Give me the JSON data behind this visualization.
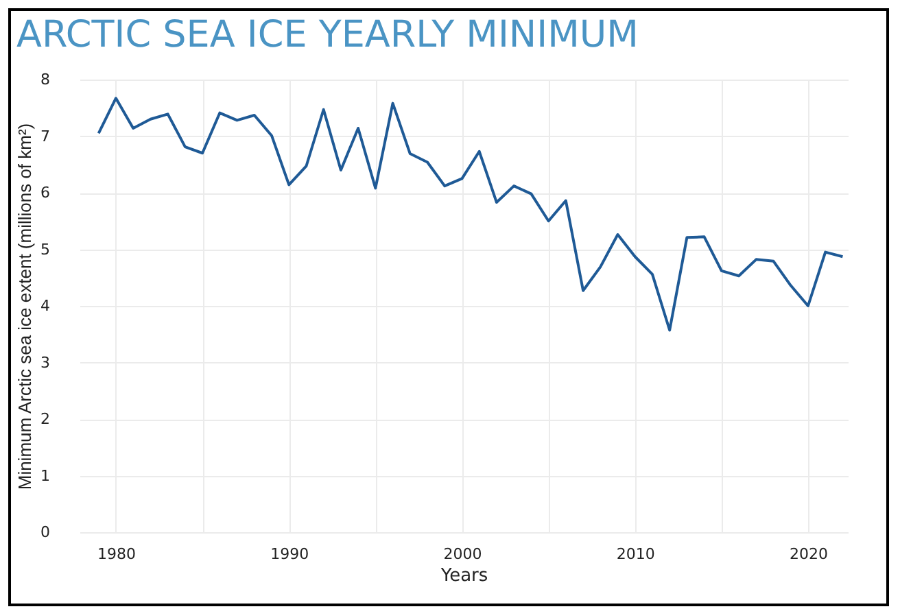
{
  "chart_data": {
    "type": "line",
    "title": "ARCTIC SEA ICE YEARLY MINIMUM",
    "xlabel": "Years",
    "ylabel": "Minimum Arctic sea ice extent (millions of km²)",
    "x": [
      1979,
      1980,
      1981,
      1982,
      1983,
      1984,
      1985,
      1986,
      1987,
      1988,
      1989,
      1990,
      1991,
      1992,
      1993,
      1994,
      1995,
      1996,
      1997,
      1998,
      1999,
      2000,
      2001,
      2002,
      2003,
      2004,
      2005,
      2006,
      2007,
      2008,
      2009,
      2010,
      2011,
      2012,
      2013,
      2014,
      2015,
      2016,
      2017,
      2018,
      2019,
      2020,
      2021,
      2022
    ],
    "series": [
      {
        "color": "#1f5a96",
        "values": [
          7.05,
          7.67,
          7.14,
          7.3,
          7.39,
          6.81,
          6.7,
          7.41,
          7.28,
          7.37,
          7.01,
          6.14,
          6.47,
          7.47,
          6.4,
          7.14,
          6.08,
          7.58,
          6.69,
          6.54,
          6.12,
          6.25,
          6.73,
          5.83,
          6.12,
          5.98,
          5.5,
          5.86,
          4.27,
          4.69,
          5.26,
          4.87,
          4.56,
          3.57,
          5.21,
          5.22,
          4.62,
          4.53,
          4.82,
          4.79,
          4.36,
          4.0,
          4.95,
          4.87
        ]
      }
    ],
    "xlim": [
      1977.9,
      2022.3
    ],
    "xticks": [
      1980,
      {
        "value": 1985,
        "label": null
      },
      1990,
      {
        "value": 1995,
        "label": null
      },
      2000,
      {
        "value": 2005,
        "label": null
      },
      2010,
      {
        "value": 2015,
        "label": null
      },
      2020
    ],
    "ylim": [
      0,
      8
    ],
    "yticks": [
      0,
      1,
      2,
      3,
      4,
      5,
      6,
      7,
      8
    ],
    "grid": true,
    "legend": false,
    "marker": "none",
    "line_style": "solid"
  }
}
